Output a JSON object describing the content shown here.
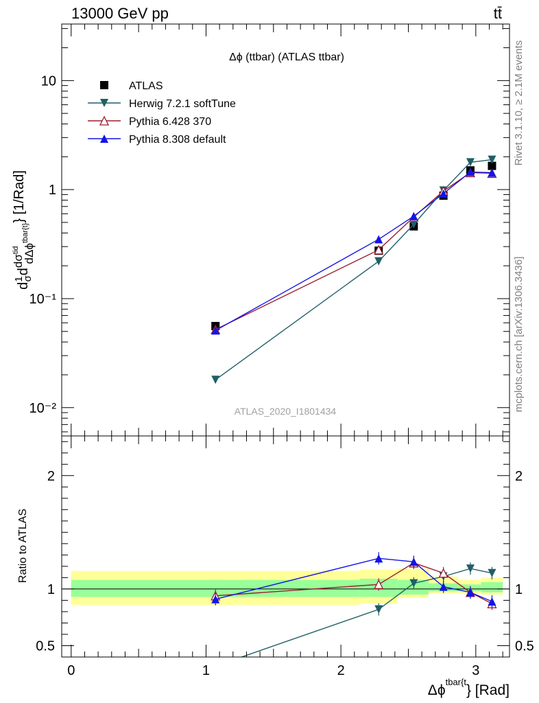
{
  "header": {
    "energy_label": "13000 GeV pp",
    "process_label": "tt̄"
  },
  "side_labels": {
    "rivet": "Rivet 3.1.10, ≥ 2.1M events",
    "mcplots": "mcplots.cern.ch [arXiv:1306.3436]"
  },
  "chart_data": [
    {
      "type": "line",
      "title": "Δϕ (ttbar) (ATLAS ttbar)",
      "watermark": "ATLAS_2020_I1801434",
      "ylabel": "d(1/σ) dσ^{tid}/dΔϕ^{tbar{t}} [1/Rad]",
      "yscale": "log",
      "xlim": [
        -0.07,
        3.25
      ],
      "ylim": [
        0.0055,
        33
      ],
      "yticks": [
        {
          "value": 0.01,
          "label": "10⁻²"
        },
        {
          "value": 0.1,
          "label": "10⁻¹"
        },
        {
          "value": 1,
          "label": "1"
        },
        {
          "value": 10,
          "label": "10"
        }
      ],
      "legend": [
        "ATLAS",
        "Herwig 7.2.1 softTune",
        "Pythia 6.428 370",
        "Pythia 8.308 default"
      ],
      "legend_position": "top-left",
      "series": [
        {
          "name": "ATLAS",
          "color": "#000000",
          "marker": "square",
          "x": [
            1.07,
            2.28,
            2.54,
            2.76,
            2.96,
            3.12
          ],
          "y": [
            0.056,
            0.275,
            0.46,
            0.88,
            1.5,
            1.65
          ]
        },
        {
          "name": "Herwig 7.2.1 softTune",
          "color": "#1f5f66",
          "marker": "triangle-down",
          "x": [
            1.07,
            2.28,
            2.54,
            2.76,
            2.96,
            3.12
          ],
          "y": [
            0.018,
            0.22,
            0.48,
            0.98,
            1.78,
            1.88
          ]
        },
        {
          "name": "Pythia 6.428 370",
          "color": "#9b1c2e",
          "marker": "triangle-up-open",
          "x": [
            1.07,
            2.28,
            2.54,
            2.76,
            2.96,
            3.12
          ],
          "y": [
            0.052,
            0.28,
            0.56,
            0.97,
            1.43,
            1.41
          ]
        },
        {
          "name": "Pythia 8.308 default",
          "color": "#1414e6",
          "marker": "triangle-up",
          "x": [
            1.07,
            2.28,
            2.54,
            2.76,
            2.96,
            3.12
          ],
          "y": [
            0.051,
            0.35,
            0.57,
            0.92,
            1.45,
            1.43
          ]
        }
      ]
    },
    {
      "type": "line",
      "ylabel": "Ratio to ATLAS",
      "xlabel": "Δϕ^{tbar{t}} [Rad]",
      "xlim": [
        -0.07,
        3.25
      ],
      "ylim": [
        0.4,
        2.35
      ],
      "xticks": [
        0,
        1,
        2,
        3
      ],
      "yticks": [
        0.5,
        1,
        2
      ],
      "reference_line": 1,
      "bands": [
        {
          "x": [
            0,
            2.14
          ],
          "yellow": [
            0.86,
            1.16
          ],
          "green": [
            0.93,
            1.08
          ]
        },
        {
          "x": [
            2.14,
            2.42
          ],
          "yellow": [
            0.87,
            1.17
          ],
          "green": [
            0.93,
            1.09
          ]
        },
        {
          "x": [
            2.42,
            2.65
          ],
          "yellow": [
            0.92,
            1.18
          ],
          "green": [
            0.95,
            1.08
          ]
        },
        {
          "x": [
            2.65,
            2.87
          ],
          "yellow": [
            0.96,
            1.11
          ],
          "green": [
            0.98,
            1.05
          ]
        },
        {
          "x": [
            2.87,
            3.04
          ],
          "yellow": [
            0.96,
            1.08
          ],
          "green": [
            0.98,
            1.04
          ]
        },
        {
          "x": [
            3.04,
            3.2
          ],
          "yellow": [
            0.95,
            1.1
          ],
          "green": [
            0.97,
            1.06
          ]
        }
      ],
      "series": [
        {
          "name": "Herwig 7.2.1 softTune",
          "color": "#1f5f66",
          "marker": "triangle-down",
          "x": [
            1.07,
            2.28,
            2.54,
            2.76,
            2.96,
            3.12
          ],
          "y": [
            0.32,
            0.82,
            1.05,
            1.11,
            1.18,
            1.14
          ]
        },
        {
          "name": "Pythia 6.428 370",
          "color": "#9b1c2e",
          "marker": "triangle-up-open",
          "x": [
            1.07,
            2.28,
            2.54,
            2.76,
            2.96,
            3.12
          ],
          "y": [
            0.94,
            1.04,
            1.23,
            1.14,
            0.97,
            0.87
          ]
        },
        {
          "name": "Pythia 8.308 default",
          "color": "#1414e6",
          "marker": "triangle-up",
          "x": [
            1.07,
            2.28,
            2.54,
            2.76,
            2.96,
            3.12
          ],
          "y": [
            0.91,
            1.27,
            1.24,
            1.02,
            0.97,
            0.89
          ]
        }
      ]
    }
  ]
}
